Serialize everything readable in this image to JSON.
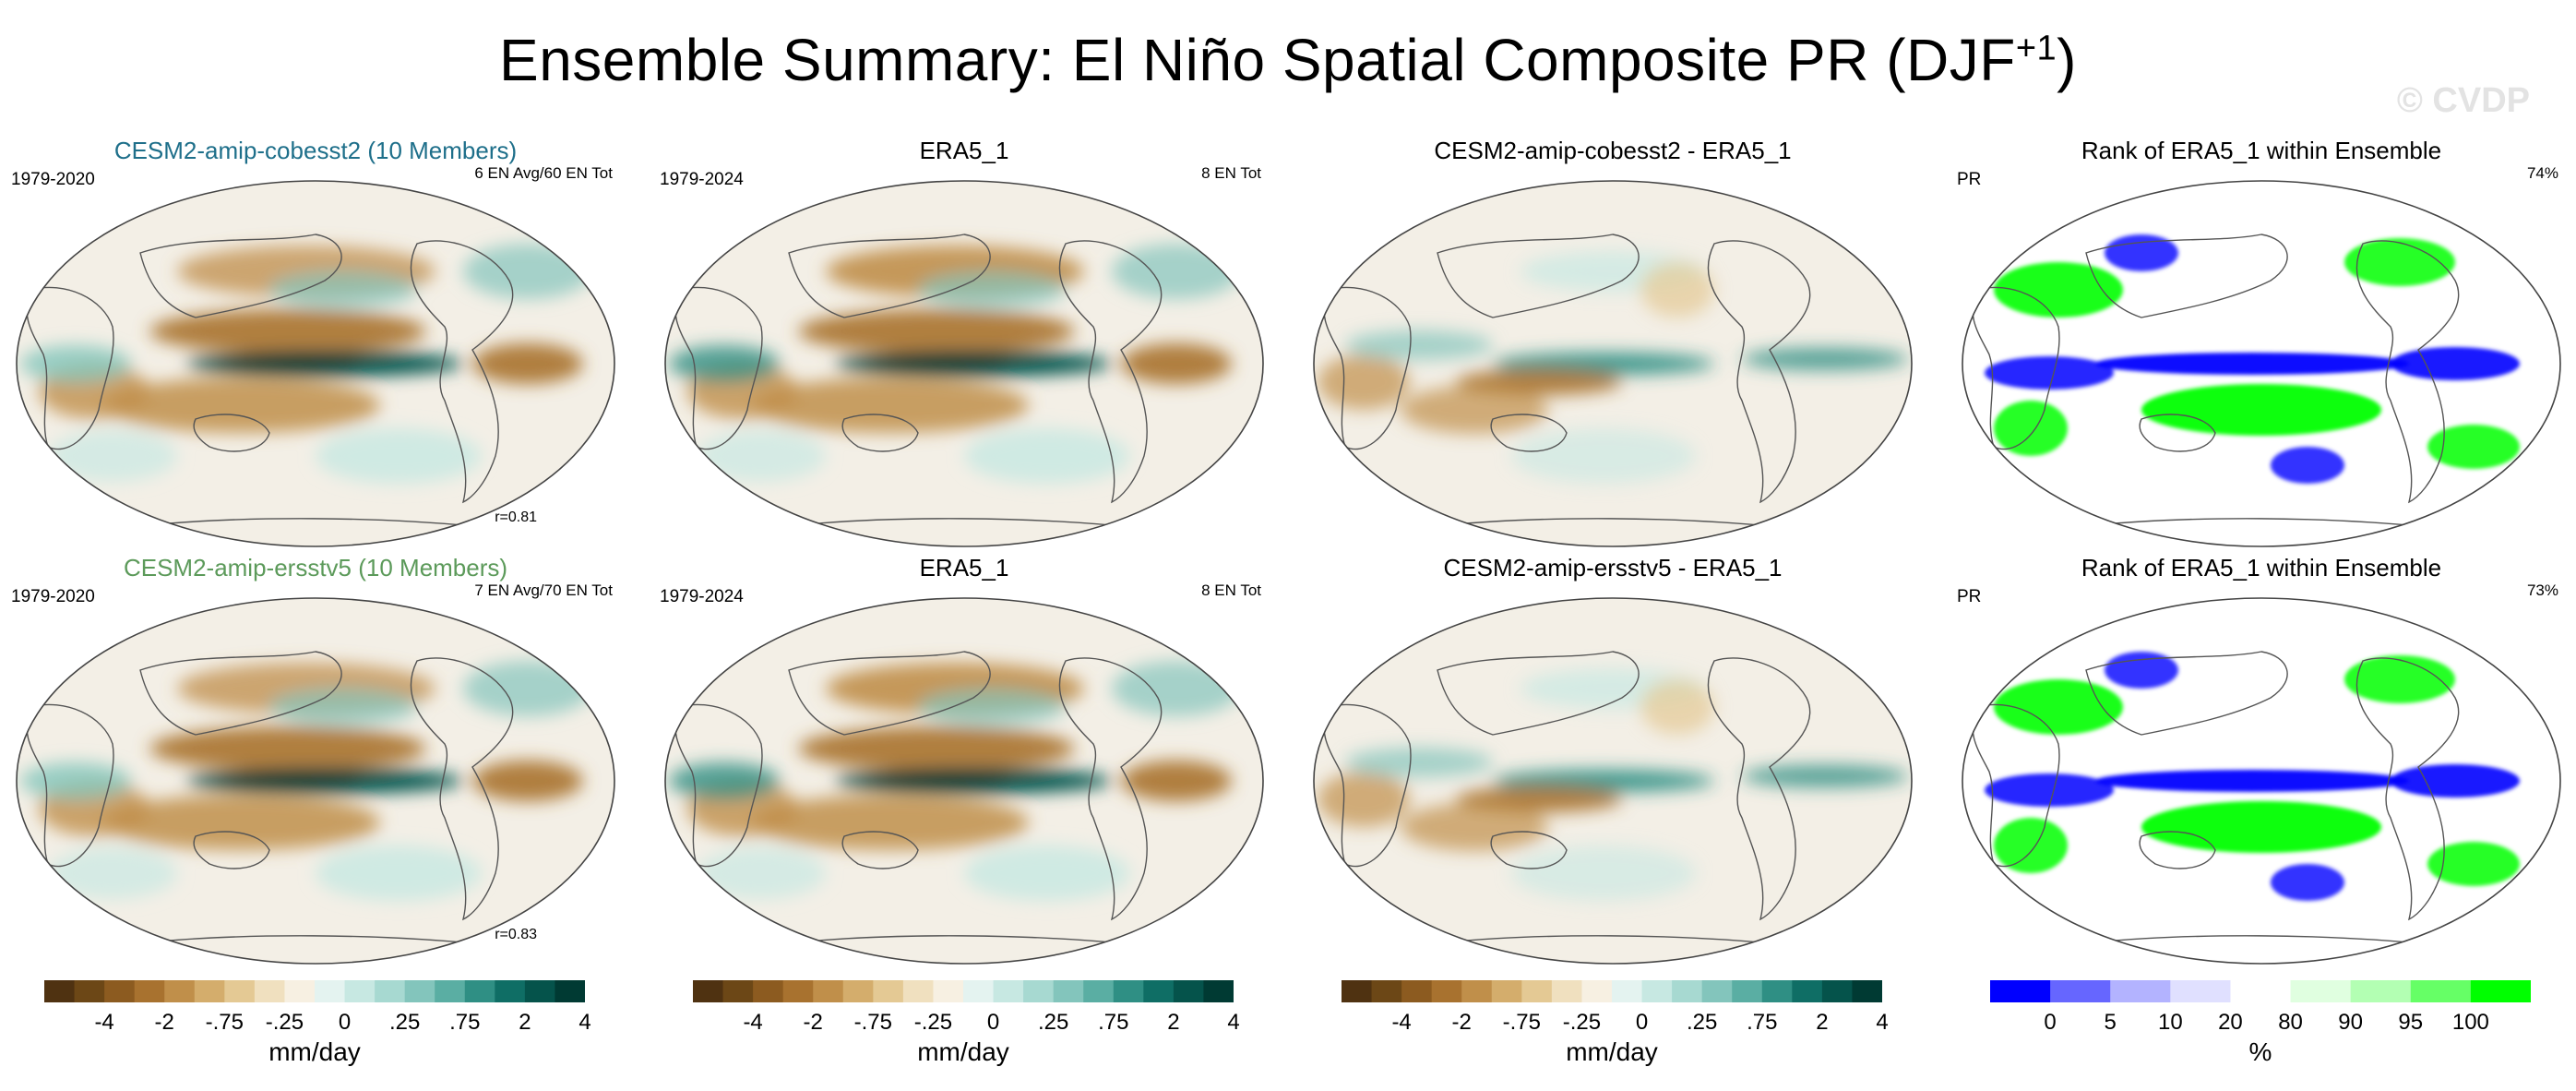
{
  "figure": {
    "title": "Ensemble Summary: El Niño Spatial Composite PR (DJF",
    "title_sup": "+1",
    "title_close": ")",
    "watermark": "© CVDP"
  },
  "chart_data": [
    {
      "type": "heatmap",
      "title": "CESM2-amip-cobesst2 (10 Members)",
      "title_color": "#1e6f8a",
      "left_label": "1979-2020",
      "right_label": "6 EN Avg/60 EN Tot",
      "annotation": "r=0.81",
      "style": "model"
    },
    {
      "type": "heatmap",
      "title": "ERA5_1",
      "title_color": "#000000",
      "left_label": "1979-2024",
      "right_label": "8 EN Tot",
      "annotation": "",
      "style": "obs"
    },
    {
      "type": "heatmap",
      "title": "CESM2-amip-cobesst2 - ERA5_1",
      "title_color": "#000000",
      "left_label": "",
      "right_label": "",
      "annotation": "",
      "style": "diff"
    },
    {
      "type": "heatmap",
      "title": "Rank of ERA5_1 within Ensemble",
      "title_color": "#000000",
      "left_label": "PR",
      "right_label": "74%",
      "annotation": "",
      "style": "rank"
    },
    {
      "type": "heatmap",
      "title": "CESM2-amip-ersstv5 (10 Members)",
      "title_color": "#5c9a5a",
      "left_label": "1979-2020",
      "right_label": "7 EN Avg/70 EN Tot",
      "annotation": "r=0.83",
      "style": "model"
    },
    {
      "type": "heatmap",
      "title": "ERA5_1",
      "title_color": "#000000",
      "left_label": "1979-2024",
      "right_label": "8 EN Tot",
      "annotation": "",
      "style": "obs"
    },
    {
      "type": "heatmap",
      "title": "CESM2-amip-ersstv5 - ERA5_1",
      "title_color": "#000000",
      "left_label": "",
      "right_label": "",
      "annotation": "",
      "style": "diff"
    },
    {
      "type": "heatmap",
      "title": "Rank of ERA5_1 within Ensemble",
      "title_color": "#000000",
      "left_label": "PR",
      "right_label": "73%",
      "annotation": "",
      "style": "rank"
    }
  ],
  "colorbars": [
    {
      "unit": "mm/day",
      "ticks": [
        "-4",
        "-2",
        "-.75",
        "-.25",
        "0",
        ".25",
        ".75",
        "2",
        "4"
      ],
      "colors": [
        "#4f3211",
        "#6c4716",
        "#8c5b20",
        "#a8722f",
        "#c08f4a",
        "#d4ad6c",
        "#e4c994",
        "#f0e0bf",
        "#f7f0e2",
        "#e4f3f0",
        "#c7e8e2",
        "#a7d9d1",
        "#83c5bc",
        "#5aaea3",
        "#2f8f84",
        "#0f6e65",
        "#05534b",
        "#003a33"
      ]
    },
    {
      "unit": "mm/day",
      "ticks": [
        "-4",
        "-2",
        "-.75",
        "-.25",
        "0",
        ".25",
        ".75",
        "2",
        "4"
      ],
      "colors": [
        "#4f3211",
        "#6c4716",
        "#8c5b20",
        "#a8722f",
        "#c08f4a",
        "#d4ad6c",
        "#e4c994",
        "#f0e0bf",
        "#f7f0e2",
        "#e4f3f0",
        "#c7e8e2",
        "#a7d9d1",
        "#83c5bc",
        "#5aaea3",
        "#2f8f84",
        "#0f6e65",
        "#05534b",
        "#003a33"
      ]
    },
    {
      "unit": "mm/day",
      "ticks": [
        "-4",
        "-2",
        "-.75",
        "-.25",
        "0",
        ".25",
        ".75",
        "2",
        "4"
      ],
      "colors": [
        "#4f3211",
        "#6c4716",
        "#8c5b20",
        "#a8722f",
        "#c08f4a",
        "#d4ad6c",
        "#e4c994",
        "#f0e0bf",
        "#f7f0e2",
        "#e4f3f0",
        "#c7e8e2",
        "#a7d9d1",
        "#83c5bc",
        "#5aaea3",
        "#2f8f84",
        "#0f6e65",
        "#05534b",
        "#003a33"
      ]
    },
    {
      "unit": "%",
      "ticks": [
        "0",
        "5",
        "10",
        "20",
        "80",
        "90",
        "95",
        "100"
      ],
      "colors": [
        "#0000ff",
        "#6666ff",
        "#b3b3ff",
        "#e0e0ff",
        "#ffffff",
        "#e0ffe0",
        "#b3ffb3",
        "#66ff66",
        "#00ff00"
      ]
    }
  ]
}
